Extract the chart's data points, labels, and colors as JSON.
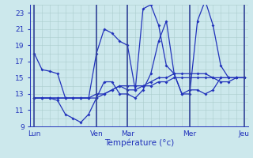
{
  "title": "Température (°c)",
  "background_color": "#cce8ec",
  "grid_color": "#aacccc",
  "line_color": "#2233bb",
  "sep_color": "#334499",
  "ylim": [
    9,
    24
  ],
  "yticks": [
    9,
    11,
    13,
    15,
    17,
    19,
    21,
    23
  ],
  "day_labels": [
    "Lun",
    "Ven",
    "Mar",
    "Mer",
    "Jeu"
  ],
  "day_positions": [
    0,
    8,
    12,
    20,
    27
  ],
  "n_points": 28,
  "series": [
    [
      18.0,
      16.0,
      15.8,
      15.5,
      12.5,
      12.5,
      12.5,
      12.5,
      18.0,
      21.0,
      20.5,
      19.5,
      19.0,
      13.5,
      23.5,
      24.0,
      21.5,
      16.5,
      15.5,
      13.0,
      13.0,
      22.0,
      24.5,
      21.5,
      16.5,
      15.0,
      15.0,
      15.0
    ],
    [
      12.5,
      12.5,
      12.5,
      12.2,
      10.5,
      10.0,
      9.5,
      10.5,
      12.5,
      14.5,
      14.5,
      13.0,
      13.0,
      12.5,
      13.5,
      15.5,
      19.5,
      22.0,
      15.5,
      13.0,
      13.5,
      13.5,
      13.0,
      13.5,
      15.0,
      15.0,
      15.0,
      15.0
    ],
    [
      12.5,
      12.5,
      12.5,
      12.5,
      12.5,
      12.5,
      12.5,
      12.5,
      12.5,
      13.0,
      13.5,
      14.0,
      14.0,
      14.0,
      14.0,
      14.5,
      15.0,
      15.0,
      15.5,
      15.5,
      15.5,
      15.5,
      15.5,
      15.0,
      14.5,
      14.5,
      15.0,
      15.0
    ],
    [
      12.5,
      12.5,
      12.5,
      12.5,
      12.5,
      12.5,
      12.5,
      12.5,
      13.0,
      13.0,
      13.5,
      14.0,
      13.5,
      13.5,
      14.0,
      14.0,
      14.5,
      14.5,
      15.0,
      15.0,
      15.0,
      15.0,
      15.0,
      15.0,
      15.0,
      15.0,
      15.0,
      15.0
    ]
  ]
}
